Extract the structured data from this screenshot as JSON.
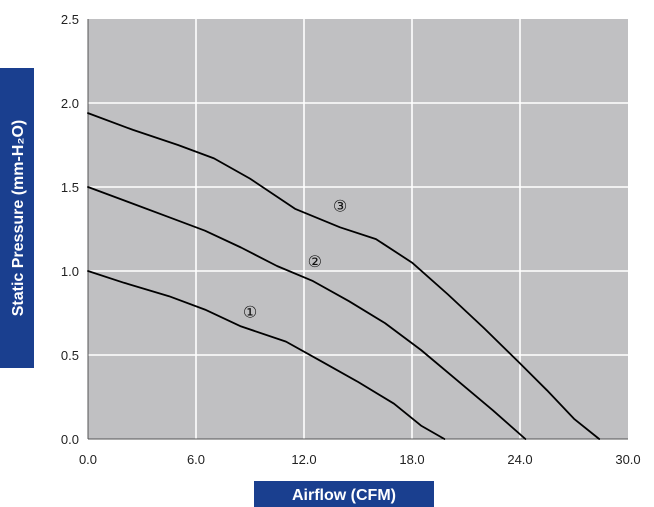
{
  "chart_data": {
    "type": "line",
    "xlabel": "Airflow (CFM)",
    "ylabel": "Static Pressure (mm-H₂O)",
    "xlim": [
      0,
      30
    ],
    "ylim": [
      0,
      2.5
    ],
    "x_ticks": [
      "0.0",
      "6.0",
      "12.0",
      "18.0",
      "24.0",
      "30.0"
    ],
    "y_ticks": [
      "0.0",
      "0.5",
      "1.0",
      "1.5",
      "2.0",
      "2.5"
    ],
    "grid": true,
    "plot_background": "#c0c0c2",
    "grid_color": "#ffffff",
    "line_color": "#000000",
    "axis_title_background": "#1a3f8f",
    "series": [
      {
        "name": "①",
        "label_at": [
          9,
          0.75
        ],
        "x": [
          0,
          2,
          4.5,
          6.5,
          8.5,
          11,
          13,
          15,
          17,
          18.5,
          19.8
        ],
        "y": [
          1.0,
          0.93,
          0.85,
          0.77,
          0.67,
          0.58,
          0.46,
          0.34,
          0.21,
          0.08,
          0.0
        ]
      },
      {
        "name": "②",
        "label_at": [
          12.6,
          1.05
        ],
        "x": [
          0,
          2,
          4.5,
          6.5,
          8.5,
          10.5,
          12.5,
          14.5,
          16.5,
          18.5,
          20.5,
          22.5,
          24.3
        ],
        "y": [
          1.5,
          1.42,
          1.32,
          1.24,
          1.14,
          1.03,
          0.94,
          0.82,
          0.69,
          0.53,
          0.35,
          0.17,
          0.0
        ]
      },
      {
        "name": "③",
        "label_at": [
          14,
          1.38
        ],
        "x": [
          0,
          2.5,
          5,
          7,
          9,
          11.5,
          14,
          16,
          18,
          20,
          22,
          24,
          25.5,
          27,
          28.4
        ],
        "y": [
          1.94,
          1.84,
          1.75,
          1.67,
          1.55,
          1.37,
          1.26,
          1.19,
          1.05,
          0.86,
          0.66,
          0.45,
          0.29,
          0.12,
          0.0
        ]
      }
    ]
  }
}
